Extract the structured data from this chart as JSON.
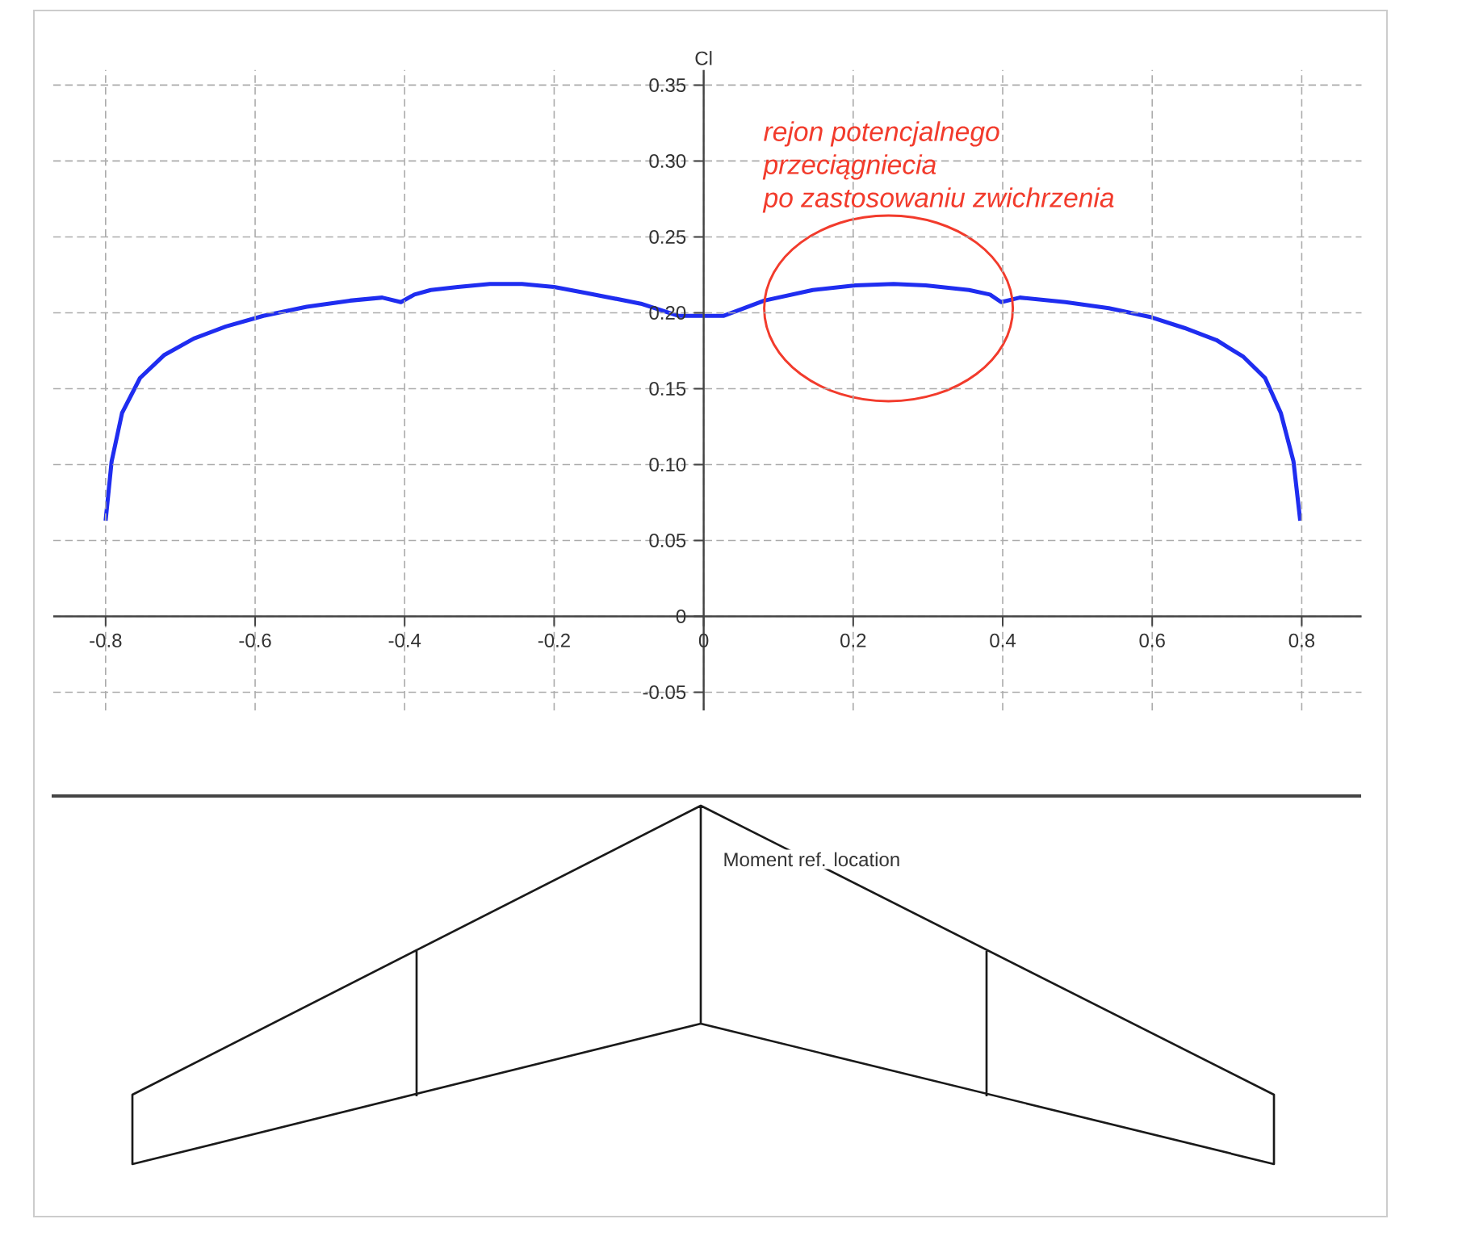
{
  "chart_data": {
    "type": "line",
    "ylabel": "Cl",
    "x": [
      -0.8,
      -0.792,
      -0.778,
      -0.754,
      -0.722,
      -0.682,
      -0.639,
      -0.589,
      -0.531,
      -0.473,
      -0.43,
      -0.405,
      -0.387,
      -0.365,
      -0.329,
      -0.286,
      -0.243,
      -0.2,
      -0.157,
      -0.084,
      -0.034,
      0.027,
      0.081,
      0.146,
      0.203,
      0.254,
      0.297,
      0.355,
      0.383,
      0.398,
      0.423,
      0.484,
      0.542,
      0.599,
      0.643,
      0.686,
      0.722,
      0.751,
      0.772,
      0.789,
      0.798
    ],
    "values": [
      0.063,
      0.102,
      0.134,
      0.157,
      0.172,
      0.183,
      0.191,
      0.198,
      0.204,
      0.208,
      0.21,
      0.207,
      0.212,
      0.215,
      0.217,
      0.219,
      0.219,
      0.217,
      0.213,
      0.206,
      0.198,
      0.198,
      0.208,
      0.215,
      0.218,
      0.219,
      0.218,
      0.215,
      0.212,
      0.207,
      0.21,
      0.207,
      0.203,
      0.197,
      0.19,
      0.182,
      0.171,
      0.157,
      0.134,
      0.102,
      0.063
    ],
    "color": "#1f2df0",
    "xlim": [
      -0.87,
      0.88
    ],
    "ylim": [
      -0.062,
      0.36
    ],
    "xticks": [
      -0.8,
      -0.6,
      -0.4,
      -0.2,
      0,
      0.2,
      0.4,
      0.6,
      0.8
    ],
    "yticks": [
      -0.05,
      0,
      0.05,
      {
        "value": 0.1,
        "label": "0.10"
      },
      0.15,
      {
        "value": 0.2,
        "label": "0.20"
      },
      0.25,
      {
        "value": 0.3,
        "label": "0.30"
      },
      0.35
    ],
    "grid": true,
    "annotations": [
      "rejon potencjalnego",
      "przeciągniecia",
      "po zastosowaniu zwichrzenia",
      "Moment ref. location"
    ]
  }
}
